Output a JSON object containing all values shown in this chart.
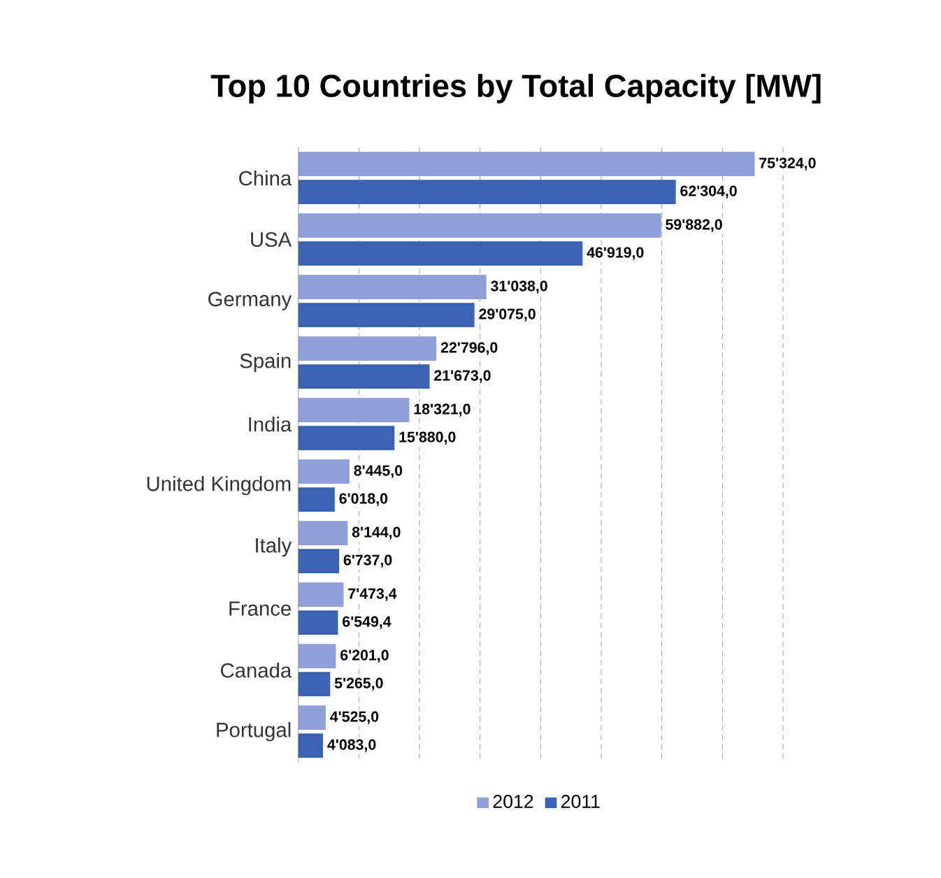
{
  "chart_data": {
    "type": "bar",
    "orientation": "horizontal",
    "title": "Top 10 Countries by Total Capacity [MW]",
    "categories": [
      "China",
      "USA",
      "Germany",
      "Spain",
      "India",
      "United Kingdom",
      "Italy",
      "France",
      "Canada",
      "Portugal"
    ],
    "series": [
      {
        "name": "2012",
        "color": "#8e9fd9",
        "values": [
          75324.0,
          59882.0,
          31038.0,
          22796.0,
          18321.0,
          8445.0,
          8144.0,
          7473.4,
          6201.0,
          4525.0
        ],
        "value_labels": [
          "75'324,0",
          "59'882,0",
          "31'038,0",
          "22'796,0",
          "18'321,0",
          "8'445,0",
          "8'144,0",
          "7'473,4",
          "6'201,0",
          "4'525,0"
        ]
      },
      {
        "name": "2011",
        "color": "#3c62b3",
        "values": [
          62304.0,
          46919.0,
          29075.0,
          21673.0,
          15880.0,
          6018.0,
          6737.0,
          6549.4,
          5265.0,
          4083.0
        ],
        "value_labels": [
          "62'304,0",
          "46'919,0",
          "29'075,0",
          "21'673,0",
          "15'880,0",
          "6'018,0",
          "6'737,0",
          "6'549,4",
          "5'265,0",
          "4'083,0"
        ]
      }
    ],
    "xlim": [
      0,
      80000
    ],
    "xticks": [
      {
        "value": 0,
        "label": null
      },
      {
        "value": 10000,
        "label": null
      },
      {
        "value": 20000,
        "label": null
      },
      {
        "value": 30000,
        "label": null
      },
      {
        "value": 40000,
        "label": null
      },
      {
        "value": 50000,
        "label": null
      },
      {
        "value": 60000,
        "label": null
      },
      {
        "value": 70000,
        "label": null
      },
      {
        "value": 80000,
        "label": null
      }
    ],
    "tick_labels": "y",
    "grid": "x",
    "legend": "bottom"
  }
}
